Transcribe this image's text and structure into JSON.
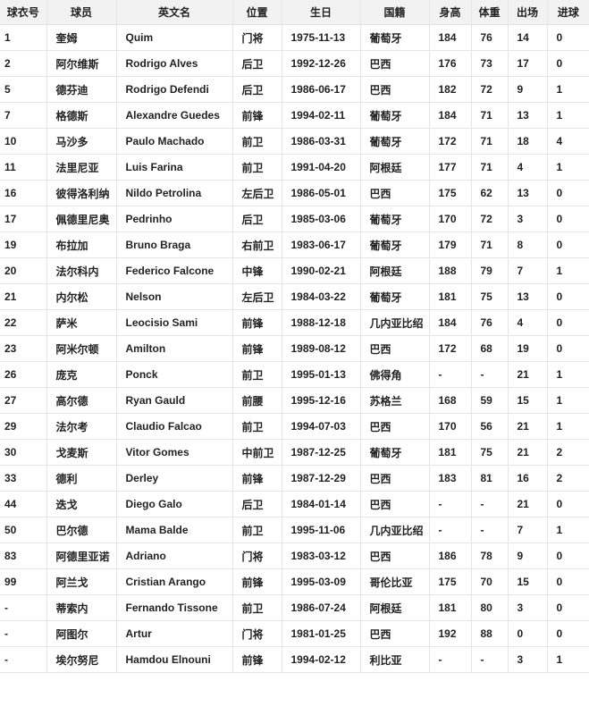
{
  "colors": {
    "header_bg": "#f2f2f2",
    "border": "#e6e6e6",
    "text": "#222222"
  },
  "table": {
    "columns": [
      "球衣号",
      "球员",
      "英文名",
      "位置",
      "生日",
      "国籍",
      "身高",
      "体重",
      "出场",
      "进球"
    ],
    "rows": [
      [
        "1",
        "奎姆",
        "Quim",
        "门将",
        "1975-11-13",
        "葡萄牙",
        "184",
        "76",
        "14",
        "0"
      ],
      [
        "2",
        "阿尔维斯",
        "Rodrigo Alves",
        "后卫",
        "1992-12-26",
        "巴西",
        "176",
        "73",
        "17",
        "0"
      ],
      [
        "5",
        "德芬迪",
        "Rodrigo Defendi",
        "后卫",
        "1986-06-17",
        "巴西",
        "182",
        "72",
        "9",
        "1"
      ],
      [
        "7",
        "格德斯",
        "Alexandre Guedes",
        "前锋",
        "1994-02-11",
        "葡萄牙",
        "184",
        "71",
        "13",
        "1"
      ],
      [
        "10",
        "马沙多",
        "Paulo Machado",
        "前卫",
        "1986-03-31",
        "葡萄牙",
        "172",
        "71",
        "18",
        "4"
      ],
      [
        "11",
        "法里尼亚",
        "Luis Farina",
        "前卫",
        "1991-04-20",
        "阿根廷",
        "177",
        "71",
        "4",
        "1"
      ],
      [
        "16",
        "彼得洛利纳",
        "Nildo Petrolina",
        "左后卫",
        "1986-05-01",
        "巴西",
        "175",
        "62",
        "13",
        "0"
      ],
      [
        "17",
        "佩德里尼奥",
        "Pedrinho",
        "后卫",
        "1985-03-06",
        "葡萄牙",
        "170",
        "72",
        "3",
        "0"
      ],
      [
        "19",
        "布拉加",
        "Bruno Braga",
        "右前卫",
        "1983-06-17",
        "葡萄牙",
        "179",
        "71",
        "8",
        "0"
      ],
      [
        "20",
        "法尔科内",
        "Federico Falcone",
        "中锋",
        "1990-02-21",
        "阿根廷",
        "188",
        "79",
        "7",
        "1"
      ],
      [
        "21",
        "内尔松",
        "Nelson",
        "左后卫",
        "1984-03-22",
        "葡萄牙",
        "181",
        "75",
        "13",
        "0"
      ],
      [
        "22",
        "萨米",
        "Leocisio Sami",
        "前锋",
        "1988-12-18",
        "几内亚比绍",
        "184",
        "76",
        "4",
        "0"
      ],
      [
        "23",
        "阿米尔顿",
        "Amilton",
        "前锋",
        "1989-08-12",
        "巴西",
        "172",
        "68",
        "19",
        "0"
      ],
      [
        "26",
        "庞克",
        "Ponck",
        "前卫",
        "1995-01-13",
        "佛得角",
        "-",
        "-",
        "21",
        "1"
      ],
      [
        "27",
        "高尔德",
        "Ryan Gauld",
        "前腰",
        "1995-12-16",
        "苏格兰",
        "168",
        "59",
        "15",
        "1"
      ],
      [
        "29",
        "法尔考",
        "Claudio Falcao",
        "前卫",
        "1994-07-03",
        "巴西",
        "170",
        "56",
        "21",
        "1"
      ],
      [
        "30",
        "戈麦斯",
        "Vitor Gomes",
        "中前卫",
        "1987-12-25",
        "葡萄牙",
        "181",
        "75",
        "21",
        "2"
      ],
      [
        "33",
        "德利",
        "Derley",
        "前锋",
        "1987-12-29",
        "巴西",
        "183",
        "81",
        "16",
        "2"
      ],
      [
        "44",
        "迭戈",
        "Diego Galo",
        "后卫",
        "1984-01-14",
        "巴西",
        "-",
        "-",
        "21",
        "0"
      ],
      [
        "50",
        "巴尔德",
        "Mama Balde",
        "前卫",
        "1995-11-06",
        "几内亚比绍",
        "-",
        "-",
        "7",
        "1"
      ],
      [
        "83",
        "阿德里亚诺",
        "Adriano",
        "门将",
        "1983-03-12",
        "巴西",
        "186",
        "78",
        "9",
        "0"
      ],
      [
        "99",
        "阿兰戈",
        "Cristian Arango",
        "前锋",
        "1995-03-09",
        "哥伦比亚",
        "175",
        "70",
        "15",
        "0"
      ],
      [
        "-",
        "蒂索内",
        "Fernando Tissone",
        "前卫",
        "1986-07-24",
        "阿根廷",
        "181",
        "80",
        "3",
        "0"
      ],
      [
        "-",
        "阿图尔",
        "Artur",
        "门将",
        "1981-01-25",
        "巴西",
        "192",
        "88",
        "0",
        "0"
      ],
      [
        "-",
        "埃尔努尼",
        "Hamdou Elnouni",
        "前锋",
        "1994-02-12",
        "利比亚",
        "-",
        "-",
        "3",
        "1"
      ]
    ]
  }
}
